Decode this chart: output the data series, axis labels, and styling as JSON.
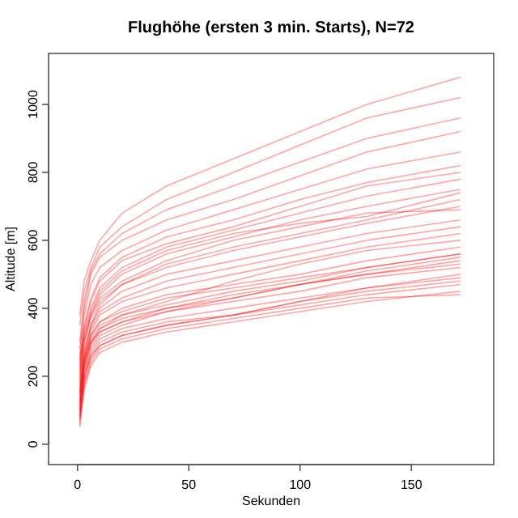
{
  "chart_data": {
    "type": "line",
    "title": "Flughöhe (ersten 3 min. Starts), N=72",
    "xlabel": "Sekunden",
    "ylabel": "Altitude [m]",
    "x": [
      1,
      3,
      6,
      10,
      20,
      40,
      70,
      100,
      130,
      172
    ],
    "xlim": [
      -13,
      187
    ],
    "xticks": [
      0,
      50,
      100,
      150
    ],
    "ylim": [
      -60,
      1150
    ],
    "yticks": [
      0,
      200,
      400,
      600,
      800,
      1000
    ],
    "marker": "none",
    "series": [
      {
        "color": "#ff0000",
        "values": [
          60,
          180,
          250,
          290,
          320,
          350,
          380,
          410,
          440,
          470
        ]
      },
      {
        "color": "#ff0000",
        "values": [
          80,
          200,
          270,
          310,
          340,
          370,
          400,
          430,
          460,
          500
        ]
      },
      {
        "color": "#ff0000",
        "values": [
          100,
          220,
          290,
          330,
          360,
          390,
          420,
          450,
          490,
          520
        ]
      },
      {
        "color": "#ff0000",
        "values": [
          120,
          230,
          300,
          340,
          370,
          400,
          430,
          470,
          500,
          540
        ]
      },
      {
        "color": "#ff0000",
        "values": [
          150,
          250,
          310,
          350,
          380,
          410,
          450,
          480,
          520,
          560
        ]
      },
      {
        "color": "#ff0000",
        "values": [
          70,
          190,
          260,
          300,
          330,
          360,
          380,
          420,
          450,
          480
        ]
      },
      {
        "color": "#ff0000",
        "values": [
          90,
          210,
          280,
          320,
          350,
          390,
          430,
          470,
          510,
          550
        ]
      },
      {
        "color": "#ff0000",
        "values": [
          110,
          240,
          320,
          360,
          400,
          440,
          470,
          500,
          540,
          580
        ]
      },
      {
        "color": "#ff0000",
        "values": [
          130,
          250,
          330,
          380,
          420,
          460,
          500,
          540,
          580,
          620
        ]
      },
      {
        "color": "#ff0000",
        "values": [
          160,
          270,
          340,
          390,
          430,
          480,
          520,
          560,
          600,
          640
        ]
      },
      {
        "color": "#ff0000",
        "values": [
          180,
          280,
          350,
          400,
          450,
          500,
          540,
          580,
          620,
          660
        ]
      },
      {
        "color": "#ff0000",
        "values": [
          200,
          300,
          370,
          420,
          470,
          520,
          570,
          610,
          650,
          700
        ]
      },
      {
        "color": "#ff0000",
        "values": [
          140,
          260,
          350,
          410,
          470,
          530,
          580,
          620,
          660,
          720
        ]
      },
      {
        "color": "#ff0000",
        "values": [
          190,
          300,
          380,
          440,
          500,
          560,
          610,
          660,
          700,
          750
        ]
      },
      {
        "color": "#ff0000",
        "values": [
          220,
          330,
          400,
          460,
          520,
          580,
          630,
          680,
          730,
          780
        ]
      },
      {
        "color": "#ff0000",
        "values": [
          240,
          350,
          430,
          490,
          550,
          610,
          660,
          720,
          770,
          820
        ]
      },
      {
        "color": "#ff0000",
        "values": [
          260,
          380,
          470,
          520,
          570,
          630,
          690,
          750,
          810,
          860
        ]
      },
      {
        "color": "#ff0000",
        "values": [
          280,
          400,
          500,
          550,
          600,
          660,
          720,
          790,
          860,
          920
        ]
      },
      {
        "color": "#ff0000",
        "values": [
          300,
          420,
          510,
          560,
          620,
          690,
          760,
          830,
          900,
          960
        ]
      },
      {
        "color": "#ff0000",
        "values": [
          350,
          450,
          520,
          580,
          640,
          720,
          800,
          880,
          960,
          1020
        ]
      },
      {
        "color": "#ff0000",
        "values": [
          380,
          480,
          540,
          600,
          680,
          760,
          840,
          920,
          1000,
          1080
        ]
      },
      {
        "color": "#ff0000",
        "values": [
          50,
          160,
          230,
          270,
          300,
          330,
          360,
          390,
          420,
          450
        ]
      },
      {
        "color": "#ff0000",
        "values": [
          80,
          170,
          240,
          280,
          310,
          340,
          370,
          400,
          430,
          440
        ]
      },
      {
        "color": "#ff0000",
        "values": [
          100,
          200,
          260,
          290,
          320,
          350,
          380,
          420,
          460,
          490
        ]
      },
      {
        "color": "#ff0000",
        "values": [
          150,
          240,
          300,
          330,
          360,
          400,
          440,
          470,
          500,
          530
        ]
      },
      {
        "color": "#ff0000",
        "values": [
          170,
          260,
          320,
          360,
          390,
          430,
          460,
          490,
          520,
          560
        ]
      },
      {
        "color": "#ff0000",
        "values": [
          120,
          230,
          300,
          340,
          380,
          420,
          480,
          530,
          570,
          600
        ]
      },
      {
        "color": "#ff0000",
        "values": [
          210,
          310,
          380,
          430,
          480,
          540,
          600,
          640,
          680,
          690
        ]
      },
      {
        "color": "#ff0000",
        "values": [
          230,
          320,
          390,
          450,
          510,
          570,
          620,
          650,
          670,
          740
        ]
      },
      {
        "color": "#ff0000",
        "values": [
          250,
          340,
          420,
          480,
          540,
          590,
          640,
          700,
          760,
          800
        ]
      }
    ]
  }
}
